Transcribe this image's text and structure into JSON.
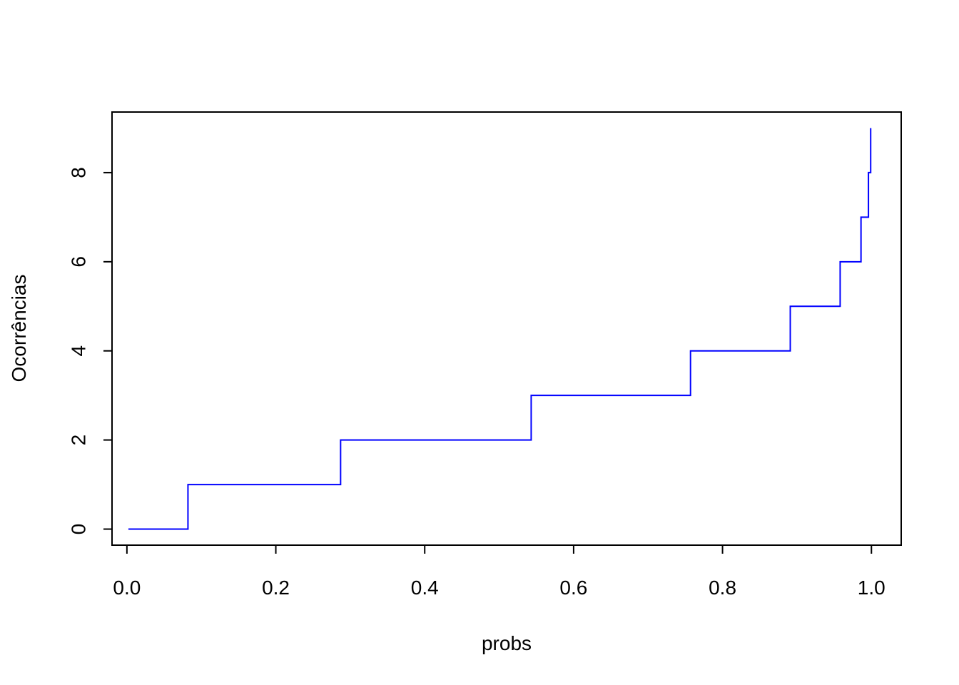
{
  "chart_data": {
    "type": "line",
    "step": "horizontal-then-vertical",
    "title": "",
    "xlabel": "probs",
    "ylabel": "Ocorrências",
    "xlim": [
      -0.02,
      1.04
    ],
    "ylim": [
      -0.36,
      9.36
    ],
    "xticks": [
      0.0,
      0.2,
      0.4,
      0.6,
      0.8,
      1.0
    ],
    "xtick_labels": [
      "0.0",
      "0.2",
      "0.4",
      "0.6",
      "0.8",
      "1.0"
    ],
    "yticks": [
      0,
      2,
      4,
      6,
      8
    ],
    "ytick_labels": [
      "0",
      "2",
      "4",
      "6",
      "8"
    ],
    "grid": false,
    "series": [
      {
        "color": "#0000ff",
        "x": [
          0.002,
          0.082,
          0.287,
          0.543,
          0.757,
          0.891,
          0.958,
          0.986,
          0.996,
          0.999
        ],
        "y": [
          0,
          1,
          2,
          3,
          4,
          5,
          6,
          7,
          8,
          9
        ]
      }
    ]
  }
}
